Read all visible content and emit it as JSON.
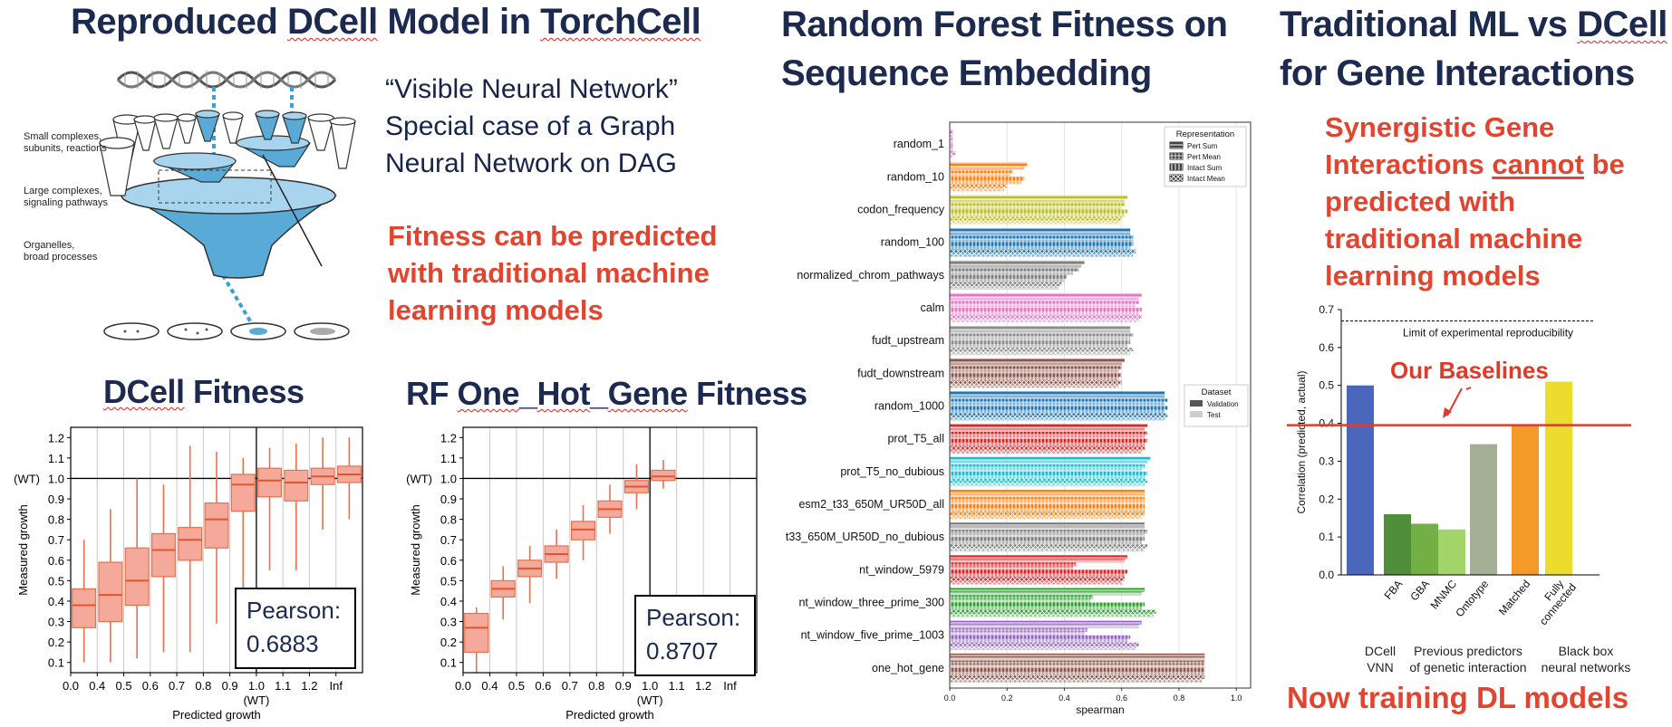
{
  "panel1": {
    "title_parts": [
      "Reproduced ",
      "DCell",
      " Model in ",
      "TorchCell"
    ],
    "quote_lines": [
      "“Visible Neural Network”",
      "Special case of a Graph",
      "Neural Network on DAG"
    ],
    "red_lines": [
      "Fitness can be predicted",
      "with traditional machine",
      "learning models"
    ],
    "diagram_labels": [
      "Small complexes,",
      "subunits, reactions",
      "Large complexes,",
      "signaling pathways",
      "Organelles,",
      "broad processes"
    ]
  },
  "panel2": {
    "title_lines": [
      "Random Forest Fitness on",
      "Sequence Embedding"
    ]
  },
  "panel3": {
    "title_line1_parts": [
      "Traditional ML vs ",
      "DCell"
    ],
    "title_line2": "for Gene Interactions",
    "red_lines": [
      "Synergistic Gene",
      "Interactions ",
      "cannot",
      " be",
      "predicted with",
      "traditional machine",
      "learning models"
    ],
    "footer": "Now training DL models",
    "bottom_captions": [
      "DCell",
      "VNN",
      "Previous predictors",
      "of genetic interaction",
      "Black box",
      "neural networks"
    ]
  },
  "chart_data": [
    {
      "type": "box",
      "title_parts": [
        "DCell",
        " Fitness"
      ],
      "xlabel": "Predicted growth",
      "ylabel": "Measured growth",
      "x_tick_labels": [
        "0.0",
        "0.4",
        "0.5",
        "0.6",
        "0.7",
        "0.8",
        "0.9",
        "1.0",
        "1.1",
        "1.2",
        "Inf"
      ],
      "x_wt_label": "(WT)",
      "y_ticks": [
        0.1,
        0.2,
        0.3,
        0.4,
        0.5,
        0.6,
        0.7,
        0.8,
        0.9,
        1.0,
        1.1,
        1.2
      ],
      "y_tick_labels": [
        "0.1",
        "0.2",
        "0.3",
        "0.4",
        "0.5",
        "0.6",
        "0.7",
        "0.8",
        "0.9",
        "1.0",
        "1.1",
        "1.2"
      ],
      "y_wt_label": "(WT)",
      "ylim": [
        0.05,
        1.25
      ],
      "boxes": [
        {
          "whislo": 0.1,
          "q1": 0.27,
          "med": 0.38,
          "q3": 0.46,
          "whishi": 0.7
        },
        {
          "whislo": 0.1,
          "q1": 0.3,
          "med": 0.43,
          "q3": 0.59,
          "whishi": 0.85
        },
        {
          "whislo": 0.12,
          "q1": 0.38,
          "med": 0.5,
          "q3": 0.66,
          "whishi": 1.0
        },
        {
          "whislo": 0.15,
          "q1": 0.52,
          "med": 0.65,
          "q3": 0.73,
          "whishi": 0.97
        },
        {
          "whislo": 0.15,
          "q1": 0.6,
          "med": 0.7,
          "q3": 0.76,
          "whishi": 1.16
        },
        {
          "whislo": 0.29,
          "q1": 0.66,
          "med": 0.8,
          "q3": 0.88,
          "whishi": 1.13
        },
        {
          "whislo": 0.37,
          "q1": 0.84,
          "med": 0.97,
          "q3": 1.02,
          "whishi": 1.1
        },
        {
          "whislo": 0.55,
          "q1": 0.91,
          "med": 0.99,
          "q3": 1.05,
          "whishi": 1.15
        },
        {
          "whislo": 0.55,
          "q1": 0.89,
          "med": 0.98,
          "q3": 1.04,
          "whishi": 1.17
        },
        {
          "whislo": 0.75,
          "q1": 0.97,
          "med": 1.01,
          "q3": 1.05,
          "whishi": 1.2
        },
        {
          "whislo": 0.8,
          "q1": 0.98,
          "med": 1.02,
          "q3": 1.06,
          "whishi": 1.2
        }
      ],
      "annotation": [
        "Pearson:",
        "0.6883"
      ]
    },
    {
      "type": "box",
      "title_parts": [
        "RF ",
        "One",
        "_",
        "Hot",
        "_",
        "Gene",
        " Fitness"
      ],
      "xlabel": "Predicted growth",
      "ylabel": "Measured growth",
      "x_tick_labels": [
        "0.0",
        "0.4",
        "0.5",
        "0.6",
        "0.7",
        "0.8",
        "0.9",
        "1.0",
        "1.1",
        "1.2",
        "Inf"
      ],
      "x_wt_label": "(WT)",
      "y_ticks": [
        0.1,
        0.2,
        0.3,
        0.4,
        0.5,
        0.6,
        0.7,
        0.8,
        0.9,
        1.0,
        1.1,
        1.2
      ],
      "y_tick_labels": [
        "0.1",
        "0.2",
        "0.3",
        "0.4",
        "0.5",
        "0.6",
        "0.7",
        "0.8",
        "0.9",
        "1.0",
        "1.1",
        "1.2"
      ],
      "y_wt_label": "(WT)",
      "ylim": [
        0.05,
        1.25
      ],
      "boxes": [
        {
          "whislo": 0.05,
          "q1": 0.15,
          "med": 0.27,
          "q3": 0.34,
          "whishi": 0.37
        },
        {
          "whislo": 0.31,
          "q1": 0.42,
          "med": 0.46,
          "q3": 0.5,
          "whishi": 0.57
        },
        {
          "whislo": 0.39,
          "q1": 0.52,
          "med": 0.56,
          "q3": 0.6,
          "whishi": 0.67
        },
        {
          "whislo": 0.51,
          "q1": 0.59,
          "med": 0.63,
          "q3": 0.67,
          "whishi": 0.75
        },
        {
          "whislo": 0.6,
          "q1": 0.7,
          "med": 0.75,
          "q3": 0.79,
          "whishi": 0.87
        },
        {
          "whislo": 0.73,
          "q1": 0.81,
          "med": 0.85,
          "q3": 0.89,
          "whishi": 0.97
        },
        {
          "whislo": 0.85,
          "q1": 0.93,
          "med": 0.96,
          "q3": 0.99,
          "whishi": 1.07
        },
        {
          "whislo": 0.95,
          "q1": 0.99,
          "med": 1.01,
          "q3": 1.04,
          "whishi": 1.09
        },
        null,
        null,
        null
      ],
      "annotation": [
        "Pearson:",
        "0.8707"
      ]
    },
    {
      "type": "bar",
      "orientation": "horizontal",
      "categories": [
        "random_1",
        "random_10",
        "codon_frequency",
        "random_100",
        "normalized_chrom_pathways",
        "calm",
        "fudt_upstream",
        "fudt_downstream",
        "random_1000",
        "prot_T5_all",
        "prot_T5_no_dubious",
        "esm2_t33_650M_UR50D_all",
        "t33_650M_UR50D_no_dubious",
        "nt_window_5979",
        "nt_window_three_prime_300",
        "nt_window_five_prime_1003",
        "one_hot_gene"
      ],
      "colors": [
        "#e377c2",
        "#ff7f0e",
        "#bcbd22",
        "#1f77b4",
        "#7f7f7f",
        "#e377c2",
        "#8c8c8c",
        "#8c564b",
        "#1f77b4",
        "#d62728",
        "#17becf",
        "#ff7f0e",
        "#7f7f7f",
        "#d62728",
        "#2ca02c",
        "#9467bd",
        "#8c564b"
      ],
      "xlabel": "spearman",
      "xlim": [
        0.0,
        1.05
      ],
      "x_ticks": [
        0.0,
        0.2,
        0.4,
        0.6,
        0.8,
        1.0
      ],
      "x_tick_labels": [
        "0.0",
        "0.2",
        "0.4",
        "0.6",
        "0.8",
        "1.0"
      ],
      "representation_legend_title": "Representation",
      "representations": [
        "Pert Sum",
        "Pert Mean",
        "Intact Sum",
        "Intact Mean"
      ],
      "dataset_legend_title": "Dataset",
      "datasets": [
        "Validation",
        "Test"
      ],
      "series": [
        {
          "representation": "Pert Sum",
          "dataset": "Validation",
          "values": [
            0.01,
            0.27,
            0.62,
            0.63,
            0.47,
            0.67,
            0.63,
            0.61,
            0.75,
            0.69,
            0.7,
            0.68,
            0.68,
            0.62,
            0.68,
            0.67,
            0.89
          ]
        },
        {
          "representation": "Pert Sum",
          "dataset": "Test",
          "values": [
            0.01,
            0.26,
            0.61,
            0.63,
            0.46,
            0.66,
            0.63,
            0.6,
            0.75,
            0.68,
            0.69,
            0.68,
            0.68,
            0.61,
            0.67,
            0.66,
            0.89
          ]
        },
        {
          "representation": "Pert Mean",
          "dataset": "Validation",
          "values": [
            0.01,
            0.22,
            0.61,
            0.64,
            0.45,
            0.66,
            0.64,
            0.6,
            0.76,
            0.69,
            0.68,
            0.68,
            0.69,
            0.44,
            0.5,
            0.48,
            0.89
          ]
        },
        {
          "representation": "Pert Mean",
          "dataset": "Test",
          "values": [
            0.01,
            0.21,
            0.6,
            0.64,
            0.43,
            0.65,
            0.63,
            0.59,
            0.75,
            0.68,
            0.67,
            0.68,
            0.68,
            0.43,
            0.49,
            0.47,
            0.89
          ]
        },
        {
          "representation": "Intact Sum",
          "dataset": "Validation",
          "values": [
            0.01,
            0.26,
            0.62,
            0.64,
            0.41,
            0.67,
            0.63,
            0.6,
            0.76,
            0.69,
            0.69,
            0.68,
            0.68,
            0.62,
            0.68,
            0.63,
            0.89
          ]
        },
        {
          "representation": "Intact Sum",
          "dataset": "Test",
          "values": [
            0.01,
            0.25,
            0.61,
            0.63,
            0.4,
            0.66,
            0.62,
            0.59,
            0.75,
            0.68,
            0.68,
            0.68,
            0.67,
            0.61,
            0.67,
            0.62,
            0.89
          ]
        },
        {
          "representation": "Intact Mean",
          "dataset": "Validation",
          "values": [
            0.02,
            0.2,
            0.6,
            0.65,
            0.39,
            0.67,
            0.64,
            0.6,
            0.76,
            0.68,
            0.69,
            0.68,
            0.69,
            0.61,
            0.72,
            0.66,
            0.89
          ]
        },
        {
          "representation": "Intact Mean",
          "dataset": "Test",
          "values": [
            0.01,
            0.19,
            0.59,
            0.64,
            0.38,
            0.66,
            0.63,
            0.59,
            0.75,
            0.67,
            0.68,
            0.67,
            0.68,
            0.6,
            0.71,
            0.65,
            0.88
          ]
        }
      ]
    },
    {
      "type": "bar",
      "categories": [
        "DCell",
        "FBA",
        "GBA",
        "MNMC",
        "Ontotype",
        "Matched",
        "Fully connected"
      ],
      "values": [
        0.5,
        0.16,
        0.135,
        0.12,
        0.345,
        0.395,
        0.51
      ],
      "colors": [
        "#4a67bd",
        "#4f8f3a",
        "#72b046",
        "#a3d46a",
        "#a4b095",
        "#f39a28",
        "#ecdc2e"
      ],
      "ylabel": "Correlation (predicted, actual)",
      "ylim": [
        0.0,
        0.7
      ],
      "y_ticks": [
        0.0,
        0.1,
        0.2,
        0.3,
        0.4,
        0.5,
        0.6,
        0.7
      ],
      "y_tick_labels": [
        "0.0",
        "0.1",
        "0.2",
        "0.3",
        "0.4",
        "0.5",
        "0.6",
        "0.7"
      ],
      "x_tick_labels": [
        "FBA",
        "GBA",
        "MNMC",
        "Ontotype",
        "Matched",
        "Fully\nconnected"
      ],
      "reference_line": {
        "value": 0.67,
        "label": "Limit of experimental reproducibility"
      },
      "baseline_line": {
        "value": 0.395
      },
      "baseline_label": "Our Baselines"
    }
  ]
}
